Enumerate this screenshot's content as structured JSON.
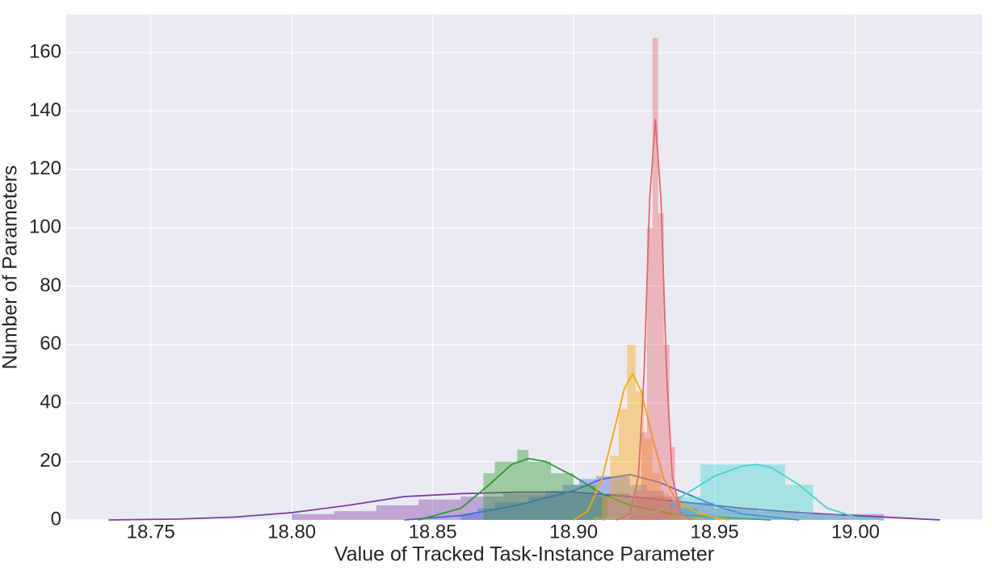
{
  "chart_data": {
    "type": "histogram",
    "xlabel": "Value of Tracked Task-Instance Parameter",
    "ylabel": "Number of Parameters",
    "xlim": [
      18.72,
      19.045
    ],
    "ylim": [
      0,
      173
    ],
    "xticks": [
      18.75,
      {
        "value": 18.8,
        "label": "18.80"
      },
      18.85,
      {
        "value": 18.9,
        "label": "18.90"
      },
      18.95,
      {
        "value": 19.0,
        "label": "19.00"
      }
    ],
    "yticks": [
      0,
      20,
      40,
      60,
      80,
      100,
      120,
      140,
      160
    ],
    "grid": true,
    "series": [
      {
        "color": "#7d3fa8",
        "bins": [
          18.8,
          18.815,
          18.83,
          18.845,
          18.86,
          18.875,
          18.89,
          18.905,
          18.92,
          18.935,
          18.95,
          18.965,
          18.98,
          18.995,
          19.01
        ],
        "counts": [
          2,
          3,
          5,
          7,
          8,
          9,
          9,
          9,
          8,
          6,
          4,
          3,
          2,
          2
        ],
        "kde": {
          "x": [
            18.735,
            18.76,
            18.78,
            18.8,
            18.82,
            18.84,
            18.86,
            18.88,
            18.9,
            18.92,
            18.94,
            18.96,
            18.98,
            19.0,
            19.02,
            19.03
          ],
          "y": [
            0,
            0.3,
            1,
            2.5,
            5,
            8,
            9,
            9.5,
            9.5,
            8,
            6,
            4,
            2.5,
            1.5,
            0.5,
            0
          ]
        }
      },
      {
        "color": "#4169e1",
        "bins": [
          18.86,
          18.866,
          18.872,
          18.878,
          18.884,
          18.89,
          18.896,
          18.902,
          18.908,
          18.914,
          18.92,
          18.926,
          18.932,
          18.938,
          18.944,
          18.95
        ],
        "counts": [
          2,
          4,
          6,
          6,
          8,
          10,
          12,
          14,
          15,
          15,
          12,
          10,
          6,
          4,
          2
        ],
        "kde": {
          "x": [
            18.84,
            18.86,
            18.88,
            18.9,
            18.91,
            18.92,
            18.93,
            18.94,
            18.95,
            18.96,
            18.98
          ],
          "y": [
            0,
            1.5,
            5,
            10,
            14,
            15.5,
            13,
            9,
            5,
            2,
            0
          ]
        }
      },
      {
        "color": "#2e9a2e",
        "bins": [
          18.868,
          18.872,
          18.876,
          18.88,
          18.884,
          18.888,
          18.892,
          18.896,
          18.9,
          18.904,
          18.908,
          18.912
        ],
        "counts": [
          16,
          20,
          20,
          24,
          20,
          20,
          16,
          16,
          12,
          12,
          8
        ],
        "kde": {
          "x": [
            18.845,
            18.86,
            18.87,
            18.878,
            18.884,
            18.89,
            18.9,
            18.91,
            18.92,
            18.935,
            18.95,
            18.97
          ],
          "y": [
            0,
            4,
            12,
            19,
            21,
            20,
            15,
            9,
            5,
            2,
            1,
            0
          ]
        }
      },
      {
        "color": "#40d8cc",
        "bins": [
          18.935,
          18.945,
          18.955,
          18.965,
          18.975,
          18.985,
          18.995,
          19.005
        ],
        "counts": [
          8,
          19,
          19,
          19,
          12,
          2,
          1
        ],
        "kde": {
          "x": [
            18.91,
            18.93,
            18.94,
            18.95,
            18.96,
            18.965,
            18.97,
            18.98,
            18.99,
            19.0,
            19.01
          ],
          "y": [
            0,
            3,
            9,
            15,
            18.5,
            19,
            18,
            12,
            4,
            1,
            0
          ]
        }
      },
      {
        "color": "#ffa500",
        "bins": [
          18.907,
          18.91,
          18.913,
          18.916,
          18.919,
          18.922,
          18.925,
          18.928,
          18.931,
          18.934,
          18.937,
          18.94,
          18.943,
          18.946
        ],
        "counts": [
          1,
          8,
          22,
          38,
          60,
          44,
          28,
          16,
          9,
          4,
          2,
          1,
          1
        ],
        "kde": {
          "x": [
            18.9,
            18.905,
            18.91,
            18.915,
            18.918,
            18.921,
            18.924,
            18.928,
            18.932,
            18.937,
            18.945,
            18.955
          ],
          "y": [
            0,
            3,
            14,
            33,
            45,
            50,
            44,
            28,
            14,
            6,
            2,
            0
          ]
        }
      },
      {
        "color": "#e8666a",
        "bins": [
          18.92,
          18.922,
          18.924,
          18.926,
          18.928,
          18.93,
          18.932,
          18.934,
          18.936,
          18.938
        ],
        "counts": [
          2,
          10,
          30,
          100,
          165,
          105,
          60,
          25,
          8
        ],
        "kde": {
          "x": [
            18.915,
            18.92,
            18.923,
            18.925,
            18.927,
            18.929,
            18.931,
            18.933,
            18.935,
            18.938,
            18.942
          ],
          "y": [
            0,
            2,
            15,
            50,
            110,
            137,
            110,
            50,
            15,
            2,
            0
          ]
        }
      }
    ]
  }
}
